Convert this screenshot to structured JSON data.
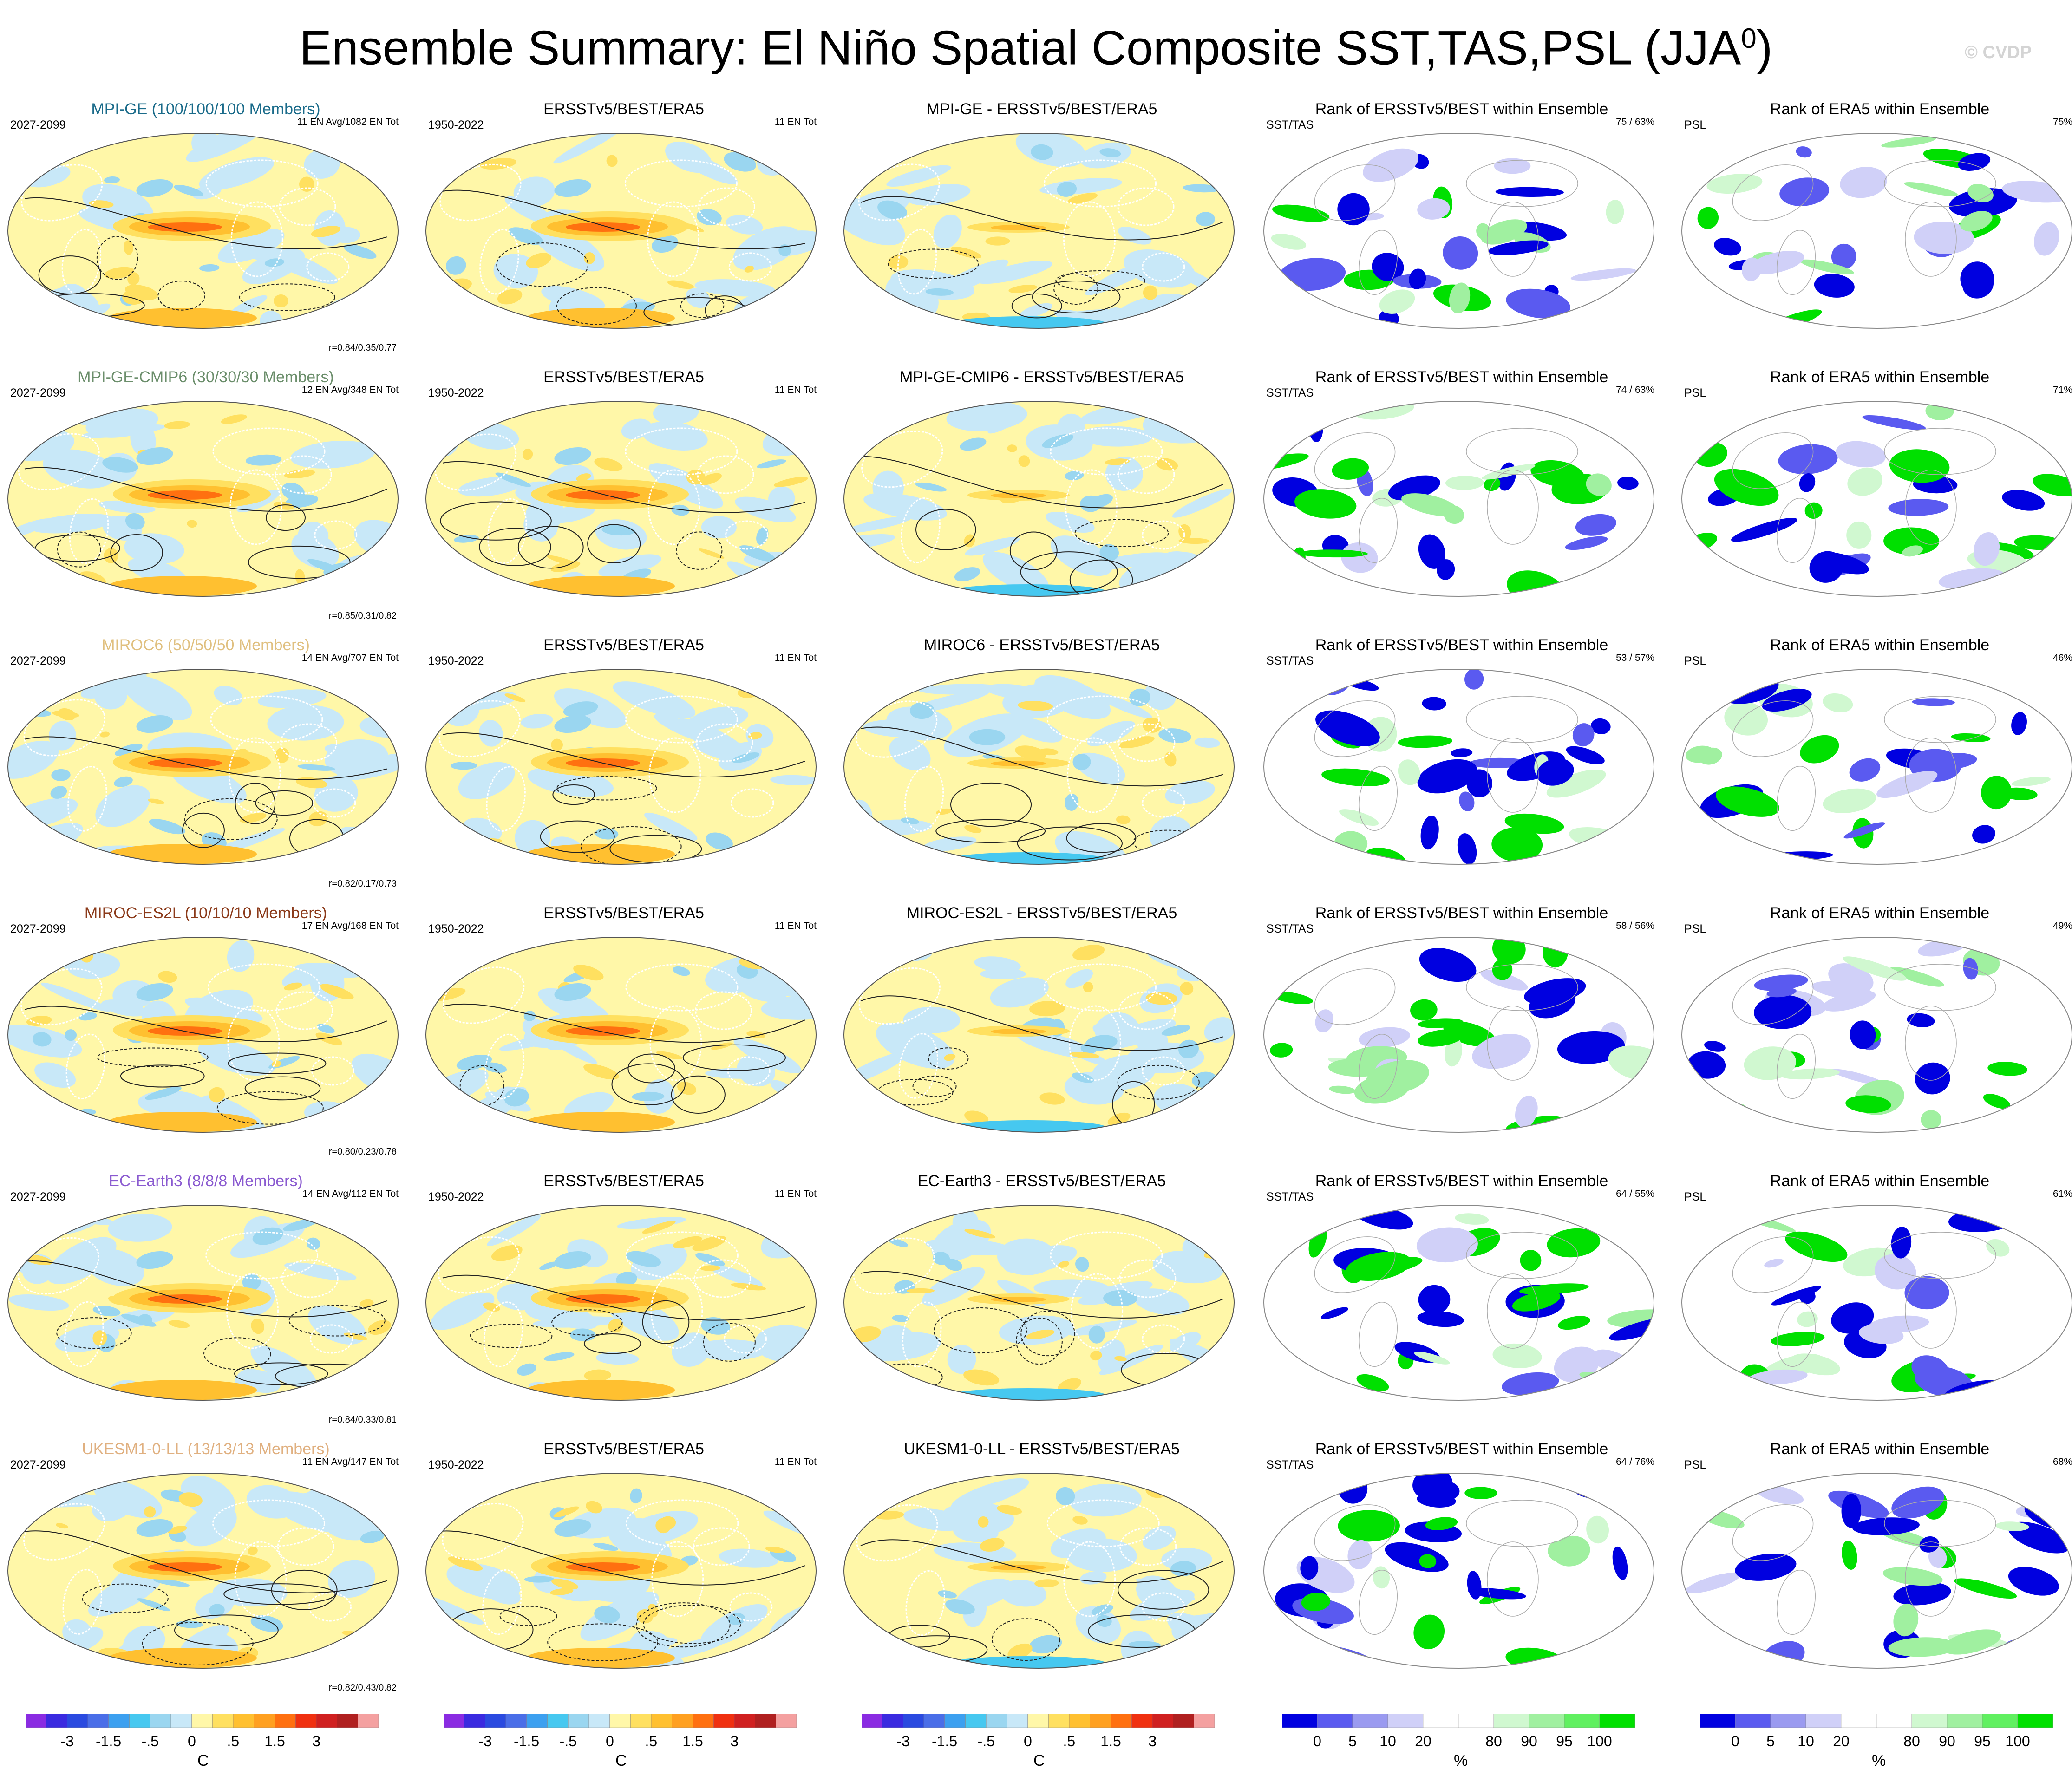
{
  "title": "Ensemble Summary: El Niño Spatial Composite SST,TAS,PSL (JJA",
  "title_superscript": "0",
  "title_close": ")",
  "credit": "© CVDP",
  "chart_data": {
    "type": "heatmap",
    "description": "Global Robinson-projection maps of El Niño composites (JJA0) for SST, TAS and PSL",
    "columns": [
      "model_composite",
      "observed_composite",
      "model_minus_obs",
      "rank_sst_tas",
      "rank_psl"
    ],
    "rows": [
      {
        "model": "MPI-GE",
        "model_label": "MPI-GE (100/100/100 Members)",
        "color": "#1a6b8a",
        "model_years": "2027-2099",
        "model_count": "11 EN Avg/1082 EN Tot",
        "pattern_corr": "r=0.84/0.35/0.77",
        "obs_title": "ERSSTv5/BEST/ERA5",
        "obs_years": "1950-2022",
        "obs_count": "11 EN Tot",
        "diff_title": "MPI-GE - ERSSTv5/BEST/ERA5",
        "rank_title": "Rank of ERSSTv5/BEST within Ensemble",
        "rank_var": "SST/TAS",
        "rank_pct": "75 /  63%",
        "rank_psl_title": "Rank of ERA5 within Ensemble",
        "rank_psl_var": "PSL",
        "rank_psl_pct": "75%"
      },
      {
        "model": "MPI-GE-CMIP6",
        "model_label": "MPI-GE-CMIP6 (30/30/30 Members)",
        "color": "#6b8e6b",
        "model_years": "2027-2099",
        "model_count": "12 EN Avg/348 EN Tot",
        "pattern_corr": "r=0.85/0.31/0.82",
        "obs_title": "ERSSTv5/BEST/ERA5",
        "obs_years": "1950-2022",
        "obs_count": "11 EN Tot",
        "diff_title": "MPI-GE-CMIP6 - ERSSTv5/BEST/ERA5",
        "rank_title": "Rank of ERSSTv5/BEST within Ensemble",
        "rank_var": "SST/TAS",
        "rank_pct": "74 /  63%",
        "rank_psl_title": "Rank of ERA5 within Ensemble",
        "rank_psl_var": "PSL",
        "rank_psl_pct": "71%"
      },
      {
        "model": "MIROC6",
        "model_label": "MIROC6 (50/50/50 Members)",
        "color": "#e0c080",
        "model_years": "2027-2099",
        "model_count": "14 EN Avg/707 EN Tot",
        "pattern_corr": "r=0.82/0.17/0.73",
        "obs_title": "ERSSTv5/BEST/ERA5",
        "obs_years": "1950-2022",
        "obs_count": "11 EN Tot",
        "diff_title": "MIROC6 - ERSSTv5/BEST/ERA5",
        "rank_title": "Rank of ERSSTv5/BEST within Ensemble",
        "rank_var": "SST/TAS",
        "rank_pct": "53 /  57%",
        "rank_psl_title": "Rank of ERA5 within Ensemble",
        "rank_psl_var": "PSL",
        "rank_psl_pct": "46%"
      },
      {
        "model": "MIROC-ES2L",
        "model_label": "MIROC-ES2L (10/10/10 Members)",
        "color": "#8b3a1a",
        "model_years": "2027-2099",
        "model_count": "17 EN Avg/168 EN Tot",
        "pattern_corr": "r=0.80/0.23/0.78",
        "obs_title": "ERSSTv5/BEST/ERA5",
        "obs_years": "1950-2022",
        "obs_count": "11 EN Tot",
        "diff_title": "MIROC-ES2L - ERSSTv5/BEST/ERA5",
        "rank_title": "Rank of ERSSTv5/BEST within Ensemble",
        "rank_var": "SST/TAS",
        "rank_pct": "58 /  56%",
        "rank_psl_title": "Rank of ERA5 within Ensemble",
        "rank_psl_var": "PSL",
        "rank_psl_pct": "49%"
      },
      {
        "model": "EC-Earth3",
        "model_label": "EC-Earth3 (8/8/8 Members)",
        "color": "#8a5ad0",
        "model_years": "2027-2099",
        "model_count": "14 EN Avg/112 EN Tot",
        "pattern_corr": "r=0.84/0.33/0.81",
        "obs_title": "ERSSTv5/BEST/ERA5",
        "obs_years": "1950-2022",
        "obs_count": "11 EN Tot",
        "diff_title": "EC-Earth3 - ERSSTv5/BEST/ERA5",
        "rank_title": "Rank of ERSSTv5/BEST within Ensemble",
        "rank_var": "SST/TAS",
        "rank_pct": "64 /  55%",
        "rank_psl_title": "Rank of ERA5 within Ensemble",
        "rank_psl_var": "PSL",
        "rank_psl_pct": "61%"
      },
      {
        "model": "UKESM1-0-LL",
        "model_label": "UKESM1-0-LL (13/13/13 Members)",
        "color": "#e0b080",
        "model_years": "2027-2099",
        "model_count": "11 EN Avg/147 EN Tot",
        "pattern_corr": "r=0.82/0.43/0.82",
        "obs_title": "ERSSTv5/BEST/ERA5",
        "obs_years": "1950-2022",
        "obs_count": "11 EN Tot",
        "diff_title": "UKESM1-0-LL - ERSSTv5/BEST/ERA5",
        "rank_title": "Rank of ERSSTv5/BEST within Ensemble",
        "rank_var": "SST/TAS",
        "rank_pct": "64 /  76%",
        "rank_psl_title": "Rank of ERA5 within Ensemble",
        "rank_psl_var": "PSL",
        "rank_psl_pct": "68%"
      }
    ],
    "anomaly_colorbar": {
      "unit": "C",
      "tick_labels": [
        "-3",
        "-1.5",
        "-.5",
        "0",
        ".5",
        "1.5",
        "3"
      ],
      "colors": [
        "#8a2be2",
        "#3a2ae0",
        "#2a4ae0",
        "#4a6ee8",
        "#3ca0f0",
        "#46c8f0",
        "#9ad6f0",
        "#c8e8f8",
        "#fff7a8",
        "#ffe060",
        "#ffc030",
        "#ffa020",
        "#ff7010",
        "#f03010",
        "#d02020",
        "#b02020",
        "#f4a0a0"
      ]
    },
    "rank_colorbar": {
      "unit": "%",
      "tick_labels": [
        "0",
        "5",
        "10",
        "20",
        "80",
        "90",
        "95",
        "100"
      ],
      "colors": [
        "#0000e0",
        "#5a5af0",
        "#9a9af0",
        "#d0d0f8",
        "#ffffff",
        "#ffffff",
        "#d0f8d0",
        "#a0f0a0",
        "#60f060",
        "#00e000"
      ]
    }
  }
}
